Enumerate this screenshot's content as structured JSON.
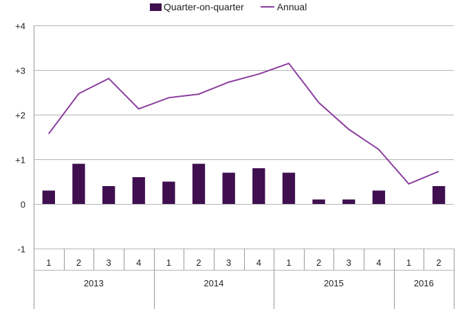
{
  "legend": {
    "bar_label": "Quarter-on-quarter",
    "line_label": "Annual"
  },
  "colors": {
    "bar": "#3f0f4f",
    "line": "#8a3d9e",
    "grid": "#b3b3b3",
    "axis": "#999999"
  },
  "chart_data": {
    "type": "bar",
    "title": "",
    "xlabel": "",
    "ylabel": "",
    "ylim": [
      -1,
      4
    ],
    "yticks": [
      -1,
      0,
      1,
      2,
      3,
      4
    ],
    "ytick_labels": [
      "-1",
      "0",
      "+1",
      "+2",
      "+3",
      "+4"
    ],
    "grid": true,
    "legend_position": "top-center",
    "categories": [
      "1",
      "2",
      "3",
      "4",
      "1",
      "2",
      "3",
      "4",
      "1",
      "2",
      "3",
      "4",
      "1",
      "2"
    ],
    "years": [
      {
        "label": "2013",
        "count": 4
      },
      {
        "label": "2014",
        "count": 4
      },
      {
        "label": "2015",
        "count": 4
      },
      {
        "label": "2016",
        "count": 2
      }
    ],
    "series": [
      {
        "name": "Quarter-on-quarter",
        "type": "bar",
        "values": [
          0.3,
          0.9,
          0.4,
          0.6,
          0.5,
          0.9,
          0.7,
          0.8,
          0.7,
          0.1,
          0.1,
          0.3,
          0.0,
          0.4
        ]
      },
      {
        "name": "Annual",
        "type": "line",
        "values": [
          1.57,
          2.47,
          2.81,
          2.13,
          2.38,
          2.46,
          2.73,
          2.91,
          3.15,
          2.27,
          1.67,
          1.22,
          0.45,
          0.73
        ]
      }
    ]
  }
}
